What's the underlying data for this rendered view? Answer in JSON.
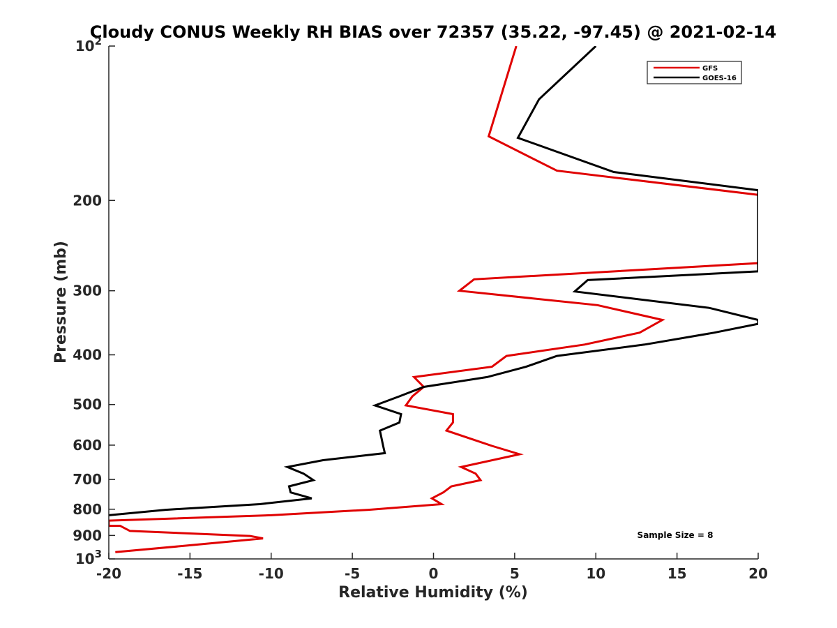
{
  "chart_data": {
    "type": "line",
    "title": "Cloudy CONUS Weekly RH BIAS over 72357 (35.22, -97.45) @ 2021-02-14",
    "xlabel": "Relative Humidity (%)",
    "ylabel": "Pressure (mb)",
    "xlim": [
      -20,
      20
    ],
    "ylim": [
      1000,
      100
    ],
    "yscale": "log",
    "y_reversed": true,
    "grid": false,
    "x_ticks": [
      "-20",
      "-15",
      "-10",
      "-5",
      "0",
      "5",
      "10",
      "15",
      "20"
    ],
    "y_ticks": [
      {
        "value": 100,
        "base": "10",
        "exp": "2"
      },
      {
        "value": 200,
        "label": "200"
      },
      {
        "value": 300,
        "label": "300"
      },
      {
        "value": 400,
        "label": "400"
      },
      {
        "value": 500,
        "label": "500"
      },
      {
        "value": 600,
        "label": "600"
      },
      {
        "value": 700,
        "label": "700"
      },
      {
        "value": 800,
        "label": "800"
      },
      {
        "value": 900,
        "label": "900"
      },
      {
        "value": 1000,
        "base": "10",
        "exp": "3"
      }
    ],
    "legend_position": "top-right",
    "annotation": "Sample Size = 8",
    "series": [
      {
        "name": "GFS",
        "color": "#e00000",
        "points": [
          {
            "x": 5.1,
            "y": 100
          },
          {
            "x": 3.4,
            "y": 150
          },
          {
            "x": 7.6,
            "y": 175
          },
          {
            "x": 20,
            "y": 195
          },
          {
            "x": 20,
            "y": 265
          },
          {
            "x": 2.5,
            "y": 285
          },
          {
            "x": 1.6,
            "y": 300
          },
          {
            "x": 10.1,
            "y": 320
          },
          {
            "x": 14.1,
            "y": 342
          },
          {
            "x": 12.7,
            "y": 362
          },
          {
            "x": 9.3,
            "y": 382
          },
          {
            "x": 4.5,
            "y": 402
          },
          {
            "x": 3.6,
            "y": 422
          },
          {
            "x": -1.2,
            "y": 442
          },
          {
            "x": -0.6,
            "y": 462
          },
          {
            "x": -1.3,
            "y": 482
          },
          {
            "x": -1.7,
            "y": 502
          },
          {
            "x": 1.2,
            "y": 522
          },
          {
            "x": 1.2,
            "y": 542
          },
          {
            "x": 0.8,
            "y": 562
          },
          {
            "x": 3.6,
            "y": 602
          },
          {
            "x": 5.3,
            "y": 625
          },
          {
            "x": 1.7,
            "y": 662
          },
          {
            "x": 2.6,
            "y": 682
          },
          {
            "x": 2.9,
            "y": 702
          },
          {
            "x": 1.1,
            "y": 722
          },
          {
            "x": 0.6,
            "y": 742
          },
          {
            "x": -0.1,
            "y": 762
          },
          {
            "x": 0.5,
            "y": 782
          },
          {
            "x": -4,
            "y": 802
          },
          {
            "x": -10,
            "y": 822
          },
          {
            "x": -20,
            "y": 842
          },
          {
            "x": -20,
            "y": 862
          },
          {
            "x": -19.3,
            "y": 862
          },
          {
            "x": -18.7,
            "y": 882
          },
          {
            "x": -11.3,
            "y": 902
          },
          {
            "x": -10.5,
            "y": 912
          },
          {
            "x": -15.2,
            "y": 942
          },
          {
            "x": -19.6,
            "y": 970
          }
        ]
      },
      {
        "name": "GOES-16",
        "color": "#000000",
        "points": [
          {
            "x": 10,
            "y": 100
          },
          {
            "x": 6.5,
            "y": 127
          },
          {
            "x": 5.2,
            "y": 151
          },
          {
            "x": 11.1,
            "y": 176
          },
          {
            "x": 20,
            "y": 191
          },
          {
            "x": 20,
            "y": 275
          },
          {
            "x": 9.5,
            "y": 286
          },
          {
            "x": 8.7,
            "y": 301
          },
          {
            "x": 17,
            "y": 324
          },
          {
            "x": 20,
            "y": 342
          },
          {
            "x": 20,
            "y": 348
          },
          {
            "x": 17.3,
            "y": 362
          },
          {
            "x": 13,
            "y": 382
          },
          {
            "x": 7.6,
            "y": 402
          },
          {
            "x": 5.7,
            "y": 422
          },
          {
            "x": 3.3,
            "y": 442
          },
          {
            "x": -0.6,
            "y": 462
          },
          {
            "x": -2.1,
            "y": 482
          },
          {
            "x": -3.6,
            "y": 502
          },
          {
            "x": -2,
            "y": 522
          },
          {
            "x": -2.1,
            "y": 542
          },
          {
            "x": -3.3,
            "y": 562
          },
          {
            "x": -3.1,
            "y": 602
          },
          {
            "x": -3,
            "y": 622
          },
          {
            "x": -6.8,
            "y": 642
          },
          {
            "x": -9,
            "y": 662
          },
          {
            "x": -8,
            "y": 682
          },
          {
            "x": -7.4,
            "y": 702
          },
          {
            "x": -8.9,
            "y": 722
          },
          {
            "x": -8.8,
            "y": 742
          },
          {
            "x": -7.5,
            "y": 762
          },
          {
            "x": -10.7,
            "y": 782
          },
          {
            "x": -16.5,
            "y": 802
          },
          {
            "x": -20,
            "y": 822
          }
        ]
      }
    ]
  }
}
